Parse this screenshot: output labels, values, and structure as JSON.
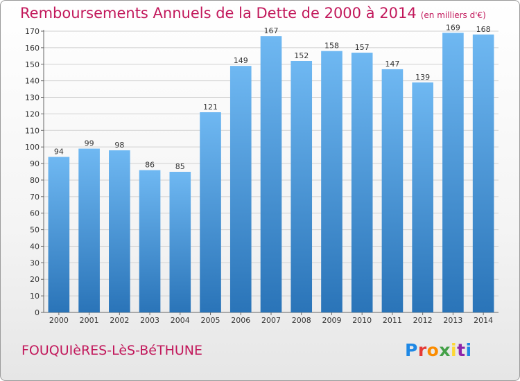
{
  "header": {
    "title": "Remboursements Annuels de la Dette de 2000 à 2014",
    "subtitle": "(en milliers d'€)"
  },
  "footer": {
    "commune": "FOUQUIèRES-LèS-BéTHUNE",
    "logo_text": "Proxiti"
  },
  "colors": {
    "title": "#c2185b",
    "bar_light": "#6fb8f2",
    "bar_dark": "#2a74b8",
    "grid": "#d0d0d0"
  },
  "chart_data": {
    "type": "bar",
    "title": "Remboursements Annuels de la Dette de 2000 à 2014",
    "subtitle": "(en milliers d'€)",
    "categories": [
      "2000",
      "2001",
      "2002",
      "2003",
      "2004",
      "2005",
      "2006",
      "2007",
      "2008",
      "2009",
      "2010",
      "2011",
      "2012",
      "2013",
      "2014"
    ],
    "values": [
      94,
      99,
      98,
      86,
      85,
      121,
      149,
      167,
      152,
      158,
      157,
      147,
      139,
      169,
      168
    ],
    "ylim": [
      0,
      170
    ],
    "yticks": [
      0,
      10,
      20,
      30,
      40,
      50,
      60,
      70,
      80,
      90,
      100,
      110,
      120,
      130,
      140,
      150,
      160,
      170
    ],
    "grid": true,
    "xlabel": "",
    "ylabel": ""
  }
}
